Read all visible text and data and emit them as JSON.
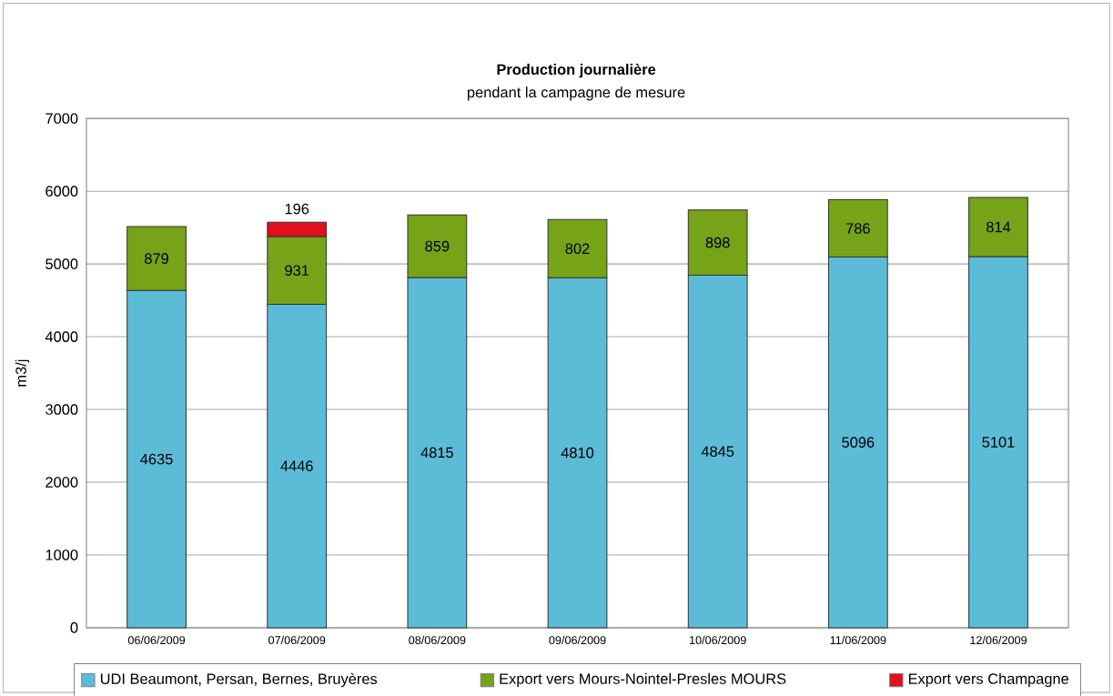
{
  "chart_data": {
    "type": "bar",
    "title": "Production journalière",
    "subtitle": "pendant la campagne de mesure",
    "ylabel": "m3/j",
    "categories": [
      "06/06/2009",
      "07/06/2009",
      "08/06/2009",
      "09/06/2009",
      "10/06/2009",
      "11/06/2009",
      "12/06/2009"
    ],
    "series": [
      {
        "name": "UDI Beaumont, Persan, Bernes, Bruyères",
        "color": "#5cbcd8",
        "values": [
          4635,
          4446,
          4815,
          4810,
          4845,
          5096,
          5101
        ]
      },
      {
        "name": "Export vers Mours-Nointel-Presles MOURS",
        "color": "#76a318",
        "values": [
          879,
          931,
          859,
          802,
          898,
          786,
          814
        ]
      },
      {
        "name": "Export vers Champagne",
        "color": "#e0101e",
        "values": [
          null,
          196,
          null,
          null,
          null,
          null,
          null
        ]
      }
    ],
    "stacked": true,
    "data_labels": true,
    "grid": "y",
    "legend": "bottom",
    "ylim": [
      0,
      7000
    ],
    "yticks": [
      0,
      1000,
      2000,
      3000,
      4000,
      5000,
      6000,
      7000
    ]
  }
}
